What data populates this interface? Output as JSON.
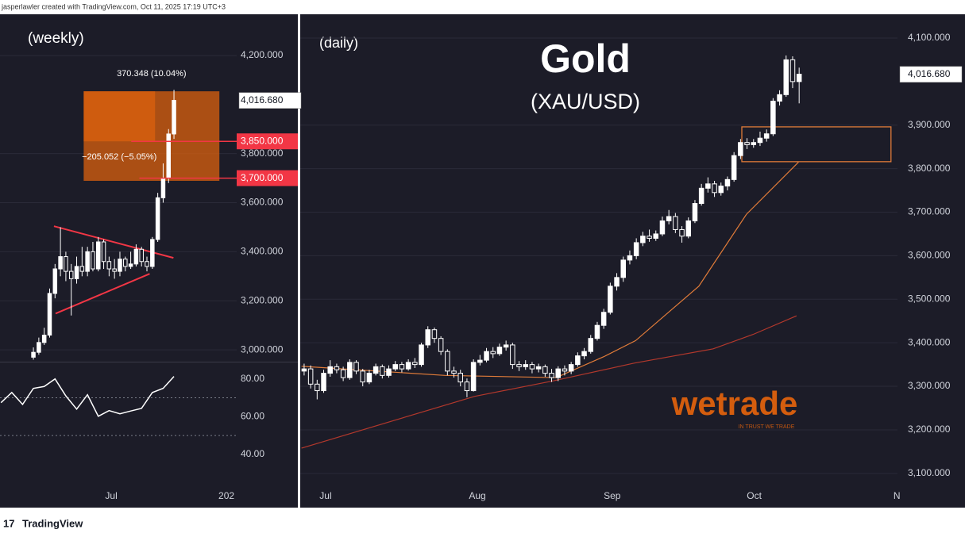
{
  "header": {
    "text": "jasperlawler created with TradingView.com, Oct 11, 2025 17:19 UTC+3"
  },
  "footer": {
    "logo": "TradingView"
  },
  "chart_data": [
    {
      "type": "candlestick",
      "title": "(weekly)",
      "open": [
        2970,
        2990,
        3030,
        3060,
        3230,
        3330,
        3380,
        3320,
        3290,
        3340,
        3320,
        3400,
        3330,
        3440,
        3360,
        3330,
        3320,
        3370,
        3340,
        3350,
        3410,
        3360,
        3340,
        3450,
        3620,
        3700,
        3880
      ],
      "high": [
        3010,
        3050,
        3090,
        3250,
        3350,
        3500,
        3400,
        3350,
        3380,
        3420,
        3420,
        3440,
        3460,
        3450,
        3380,
        3370,
        3400,
        3380,
        3400,
        3430,
        3420,
        3380,
        3460,
        3640,
        3760,
        3900,
        4060
      ],
      "low": [
        2960,
        2980,
        3020,
        3050,
        3210,
        3300,
        3280,
        3140,
        3270,
        3300,
        3300,
        3320,
        3320,
        3330,
        3300,
        3290,
        3300,
        3320,
        3330,
        3340,
        3340,
        3320,
        3330,
        3440,
        3600,
        3680,
        3860
      ],
      "close": [
        2990,
        3030,
        3060,
        3230,
        3330,
        3380,
        3320,
        3290,
        3340,
        3320,
        3400,
        3330,
        3440,
        3360,
        3330,
        3320,
        3370,
        3340,
        3350,
        3410,
        3360,
        3340,
        3450,
        3620,
        3700,
        3880,
        4017
      ],
      "up_color": "#ffffff",
      "down_color": "#1c1c28",
      "wick_color": "#ffffff",
      "xlim": [
        -6.18,
        37.6
      ],
      "xticks": [
        {
          "value": 14.4,
          "label": "Jul"
        },
        {
          "value": 35.7,
          "label": "202"
        }
      ],
      "ylim": [
        2955,
        4368
      ],
      "yticks": [
        {
          "value": 4200,
          "label": "4,200.000"
        },
        {
          "value": 3800,
          "label": "3,800.000"
        },
        {
          "value": 3600,
          "label": "3,600.000"
        },
        {
          "value": 3400,
          "label": "3,400.000"
        },
        {
          "value": 3200,
          "label": "3,200.000"
        },
        {
          "value": 3000,
          "label": "3,000.000"
        }
      ],
      "grid": true,
      "last_price": {
        "value": 4016.68,
        "label": "4,016.680"
      },
      "price_lines": [
        {
          "value": 3850,
          "label": "3,850.000",
          "from": 18.1
        },
        {
          "value": 3700,
          "label": "3,700.000",
          "from": 19.6
        }
      ],
      "line_color": "#f23645",
      "trendlines": [
        {
          "x": [
            3.8,
            25.9
          ],
          "y": [
            3504,
            3375
          ]
        },
        {
          "x": [
            4.1,
            21.5
          ],
          "y": [
            3148,
            3310
          ]
        }
      ],
      "measure": {
        "x": [
          9.3,
          34.4
        ],
        "y": [
          3689,
          4054
        ],
        "split_x": 22.5,
        "split_y": 3850,
        "color": "#e8650c",
        "labels": [
          "370.348 (10.04%)",
          "−205.052 (−5.05%)"
        ]
      }
    },
    {
      "type": "line",
      "x": [
        -6,
        -4,
        -2,
        0,
        2,
        4,
        6,
        8,
        10,
        12,
        14,
        16,
        18,
        20,
        22,
        24,
        26
      ],
      "values": [
        67.4,
        72.8,
        66.5,
        75,
        76,
        80,
        71,
        64,
        71.6,
        60.2,
        63.2,
        61.5,
        63,
        64.4,
        72.8,
        75,
        81.3
      ],
      "color": "#ffffff",
      "xlim": [
        -6.18,
        37.6
      ],
      "ylim": [
        28.6,
        88.3
      ],
      "yticks": [
        {
          "value": 80,
          "label": "80.00"
        },
        {
          "value": 60,
          "label": "60.00"
        },
        {
          "value": 40,
          "label": "40.00"
        }
      ],
      "levels": [
        70,
        50
      ]
    },
    {
      "type": "candlestick",
      "title": "(daily)",
      "annotations": [
        "Gold",
        "(XAU/USD)"
      ],
      "open": [
        3335,
        3340,
        3305,
        3290,
        3330,
        3345,
        3338,
        3320,
        3355,
        3335,
        3310,
        3330,
        3345,
        3325,
        3340,
        3350,
        3340,
        3355,
        3350,
        3395,
        3430,
        3410,
        3380,
        3335,
        3330,
        3310,
        3290,
        3355,
        3360,
        3380,
        3375,
        3390,
        3395,
        3350,
        3345,
        3350,
        3340,
        3345,
        3330,
        3320,
        3340,
        3335,
        3350,
        3370,
        3380,
        3410,
        3440,
        3470,
        3530,
        3550,
        3590,
        3600,
        3630,
        3645,
        3640,
        3650,
        3680,
        3690,
        3660,
        3645,
        3680,
        3720,
        3755,
        3765,
        3745,
        3760,
        3775,
        3830,
        3860,
        3855,
        3860,
        3870,
        3880,
        3955,
        3970,
        4050,
        4000
      ],
      "high": [
        3352,
        3348,
        3315,
        3338,
        3360,
        3352,
        3345,
        3362,
        3360,
        3340,
        3338,
        3352,
        3350,
        3348,
        3358,
        3356,
        3362,
        3365,
        3400,
        3438,
        3435,
        3415,
        3385,
        3345,
        3338,
        3318,
        3362,
        3372,
        3388,
        3390,
        3398,
        3405,
        3400,
        3358,
        3360,
        3356,
        3352,
        3350,
        3340,
        3346,
        3348,
        3356,
        3378,
        3388,
        3418,
        3448,
        3478,
        3538,
        3560,
        3598,
        3612,
        3640,
        3655,
        3660,
        3658,
        3690,
        3705,
        3698,
        3668,
        3688,
        3728,
        3765,
        3780,
        3772,
        3768,
        3782,
        3838,
        3868,
        3870,
        3868,
        3885,
        3890,
        3962,
        3980,
        4060,
        4058,
        4032
      ],
      "low": [
        3325,
        3295,
        3270,
        3285,
        3322,
        3330,
        3312,
        3315,
        3328,
        3300,
        3305,
        3325,
        3318,
        3320,
        3335,
        3332,
        3336,
        3342,
        3345,
        3388,
        3400,
        3372,
        3325,
        3320,
        3300,
        3275,
        3288,
        3348,
        3355,
        3365,
        3370,
        3382,
        3340,
        3335,
        3338,
        3330,
        3332,
        3322,
        3310,
        3312,
        3325,
        3328,
        3345,
        3362,
        3375,
        3405,
        3432,
        3465,
        3520,
        3540,
        3580,
        3592,
        3622,
        3632,
        3634,
        3645,
        3672,
        3652,
        3630,
        3640,
        3675,
        3715,
        3745,
        3735,
        3738,
        3750,
        3770,
        3822,
        3845,
        3848,
        3852,
        3862,
        3875,
        3945,
        3965,
        3985,
        3950
      ],
      "close": [
        3340,
        3305,
        3290,
        3330,
        3345,
        3338,
        3320,
        3355,
        3335,
        3310,
        3330,
        3345,
        3325,
        3340,
        3350,
        3340,
        3355,
        3350,
        3395,
        3430,
        3410,
        3380,
        3335,
        3330,
        3310,
        3290,
        3355,
        3360,
        3380,
        3375,
        3390,
        3395,
        3350,
        3345,
        3350,
        3340,
        3345,
        3330,
        3320,
        3340,
        3335,
        3350,
        3370,
        3380,
        3410,
        3440,
        3470,
        3530,
        3550,
        3590,
        3600,
        3630,
        3645,
        3640,
        3650,
        3680,
        3690,
        3660,
        3645,
        3680,
        3720,
        3755,
        3765,
        3745,
        3760,
        3775,
        3830,
        3860,
        3855,
        3860,
        3870,
        3880,
        3955,
        3970,
        4050,
        4000,
        4017
      ],
      "up_color": "#ffffff",
      "down_color": "#1c1c28",
      "wick_color": "#ffffff",
      "xlim": [
        -0.6,
        91.1
      ],
      "xticks": [
        {
          "value": 3.3,
          "label": "Jul"
        },
        {
          "value": 26.6,
          "label": "Aug"
        },
        {
          "value": 47.3,
          "label": "Sep"
        },
        {
          "value": 69.1,
          "label": "Oct"
        },
        {
          "value": 91,
          "label": "N"
        }
      ],
      "ylim": [
        3076,
        4154.6
      ],
      "yticks": [
        {
          "value": 4100,
          "label": "4,100.000"
        },
        {
          "value": 3900,
          "label": "3,900.000"
        },
        {
          "value": 3800,
          "label": "3,800.000"
        },
        {
          "value": 3700,
          "label": "3,700.000"
        },
        {
          "value": 3600,
          "label": "3,600.000"
        },
        {
          "value": 3500,
          "label": "3,500.000"
        },
        {
          "value": 3400,
          "label": "3,400.000"
        },
        {
          "value": 3300,
          "label": "3,300.000"
        },
        {
          "value": 3200,
          "label": "3,200.000"
        },
        {
          "value": 3100,
          "label": "3,100.000"
        }
      ],
      "grid": true,
      "last_price": {
        "value": 4016.68,
        "label": "4,016.680"
      },
      "moving_averages": [
        {
          "color": "#e07b39",
          "x": [
            -0.4,
            21.6,
            38.7,
            46,
            50.9,
            60.6,
            67.9,
            75.9
          ],
          "values": [
            3346,
            3325,
            3320,
            3368,
            3405,
            3530,
            3695,
            3815
          ]
        },
        {
          "color": "#b2382c",
          "x": [
            -0.4,
            26.2,
            38.4,
            50.6,
            62.8,
            68.9,
            75.6
          ],
          "values": [
            3158,
            3277,
            3313,
            3353,
            3386,
            3419,
            3462
          ]
        }
      ],
      "zone": {
        "x": [
          67.2,
          90.1
        ],
        "y": [
          3816,
          3896
        ],
        "color": "#e07b39"
      },
      "watermark": {
        "text": "wetrade",
        "tagline": "IN TRUST WE TRADE"
      }
    }
  ]
}
